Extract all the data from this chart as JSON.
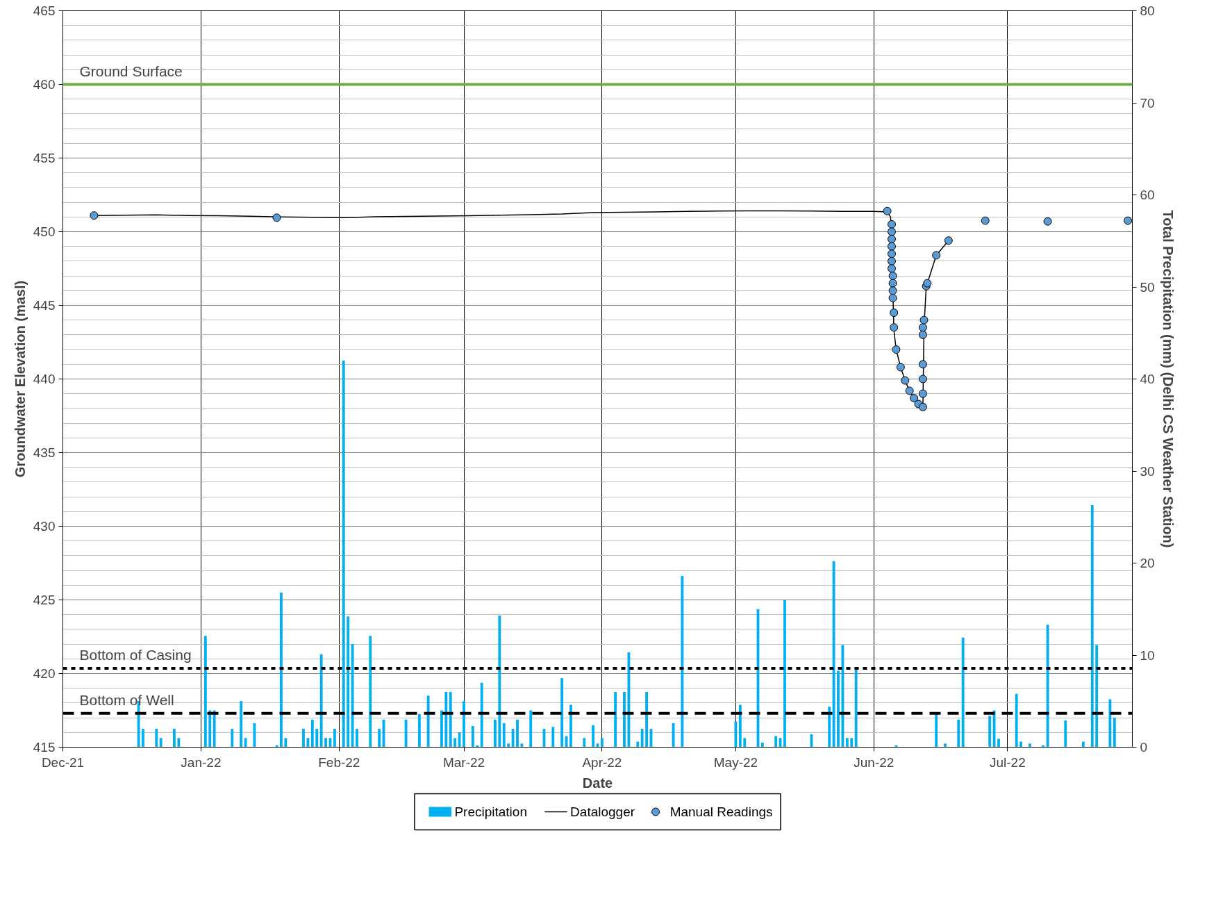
{
  "chart_data": {
    "type": "line",
    "xlabel": "Date",
    "ylabel": "Groundwater Elevation (masl)",
    "y2label": "Total Precipitation (mm) (Delhi CS Weather Station)",
    "xlim": [
      "2021-12-01",
      "2022-07-29"
    ],
    "xticks": [
      {
        "value": "2021-12-01",
        "label": "Dec-21"
      },
      {
        "value": "2022-01-01",
        "label": "Jan-22"
      },
      {
        "value": "2022-02-01",
        "label": "Feb-22"
      },
      {
        "value": "2022-03-01",
        "label": "Mar-22"
      },
      {
        "value": "2022-04-01",
        "label": "Apr-22"
      },
      {
        "value": "2022-05-01",
        "label": "May-22"
      },
      {
        "value": "2022-06-01",
        "label": "Jun-22"
      },
      {
        "value": "2022-07-01",
        "label": "Jul-22"
      }
    ],
    "ylim": [
      415,
      465
    ],
    "yticks": [
      415,
      420,
      425,
      430,
      435,
      440,
      445,
      450,
      455,
      460,
      465
    ],
    "y2lim": [
      0,
      80
    ],
    "y2ticks": [
      0,
      10,
      20,
      30,
      40,
      50,
      60,
      70,
      80
    ],
    "grid": true,
    "legend": "bottom",
    "series": [
      {
        "name": "Precipitation",
        "type": "bar",
        "axis": "y2",
        "color": "#00b0f0",
        "x": [
          "2021-12-18",
          "2021-12-19",
          "2021-12-22",
          "2021-12-23",
          "2021-12-26",
          "2021-12-27",
          "2022-01-02",
          "2022-01-03",
          "2022-01-04",
          "2022-01-08",
          "2022-01-10",
          "2022-01-11",
          "2022-01-13",
          "2022-01-18",
          "2022-01-19",
          "2022-01-20",
          "2022-01-24",
          "2022-01-25",
          "2022-01-26",
          "2022-01-27",
          "2022-01-28",
          "2022-01-29",
          "2022-01-30",
          "2022-01-31",
          "2022-02-02",
          "2022-02-03",
          "2022-02-04",
          "2022-02-05",
          "2022-02-08",
          "2022-02-10",
          "2022-02-11",
          "2022-02-16",
          "2022-02-19",
          "2022-02-21",
          "2022-02-24",
          "2022-02-25",
          "2022-02-26",
          "2022-02-27",
          "2022-02-28",
          "2022-03-01",
          "2022-03-03",
          "2022-03-04",
          "2022-03-05",
          "2022-03-08",
          "2022-03-09",
          "2022-03-10",
          "2022-03-11",
          "2022-03-12",
          "2022-03-13",
          "2022-03-14",
          "2022-03-16",
          "2022-03-19",
          "2022-03-21",
          "2022-03-23",
          "2022-03-24",
          "2022-03-25",
          "2022-03-28",
          "2022-03-30",
          "2022-03-31",
          "2022-04-01",
          "2022-04-04",
          "2022-04-06",
          "2022-04-07",
          "2022-04-09",
          "2022-04-10",
          "2022-04-11",
          "2022-04-12",
          "2022-04-17",
          "2022-04-19",
          "2022-05-01",
          "2022-05-02",
          "2022-05-03",
          "2022-05-06",
          "2022-05-07",
          "2022-05-10",
          "2022-05-11",
          "2022-05-12",
          "2022-05-18",
          "2022-05-22",
          "2022-05-23",
          "2022-05-24",
          "2022-05-25",
          "2022-05-26",
          "2022-05-27",
          "2022-05-28",
          "2022-06-06",
          "2022-06-15",
          "2022-06-17",
          "2022-06-20",
          "2022-06-21",
          "2022-06-27",
          "2022-06-28",
          "2022-06-29",
          "2022-07-03",
          "2022-07-04",
          "2022-07-06",
          "2022-07-09",
          "2022-07-10",
          "2022-07-14",
          "2022-07-18",
          "2022-07-20",
          "2022-07-21",
          "2022-07-24",
          "2022-07-25"
        ],
        "values": [
          5.0,
          2.0,
          2.0,
          1.0,
          2.0,
          1.0,
          12.1,
          4.0,
          4.0,
          2.0,
          5.0,
          1.0,
          2.6,
          0.2,
          16.8,
          1.0,
          2.0,
          1.0,
          3.0,
          2.0,
          10.1,
          1.0,
          1.0,
          2.0,
          42.0,
          14.2,
          11.2,
          2.0,
          12.1,
          2.0,
          3.0,
          3.0,
          3.6,
          5.6,
          4.0,
          6.0,
          6.0,
          1.0,
          1.6,
          5.0,
          2.3,
          0.2,
          7.0,
          3.0,
          14.3,
          2.6,
          0.4,
          2.0,
          3.0,
          0.4,
          4.0,
          2.0,
          2.2,
          7.5,
          1.2,
          4.6,
          1.0,
          2.4,
          0.4,
          1.0,
          6.0,
          6.0,
          10.3,
          0.6,
          2.0,
          6.0,
          2.0,
          2.6,
          18.6,
          2.8,
          4.6,
          1.0,
          15.0,
          0.5,
          1.2,
          1.0,
          16.0,
          1.4,
          4.4,
          20.2,
          8.3,
          11.1,
          1.0,
          1.0,
          8.7,
          0.2,
          3.6,
          0.4,
          3.0,
          11.9,
          3.4,
          4.0,
          0.9,
          5.8,
          0.6,
          0.4,
          0.2,
          13.3,
          2.9,
          0.6,
          26.3,
          11.1,
          5.2,
          3.2
        ]
      },
      {
        "name": "Datalogger",
        "color": "#000000",
        "x": [
          "2021-12-08",
          "2021-12-15",
          "2021-12-22",
          "2021-12-29",
          "2022-01-05",
          "2022-01-12",
          "2022-01-19",
          "2022-01-26",
          "2022-02-02",
          "2022-02-09",
          "2022-02-16",
          "2022-02-23",
          "2022-03-02",
          "2022-03-09",
          "2022-03-16",
          "2022-03-23",
          "2022-03-30",
          "2022-04-06",
          "2022-04-13",
          "2022-04-20",
          "2022-04-27",
          "2022-05-04",
          "2022-05-11",
          "2022-05-18",
          "2022-05-25",
          "2022-06-01",
          "2022-06-04",
          "2022-06-04T18:00",
          "2022-06-05",
          "2022-06-05T06:00",
          "2022-06-05T12:00",
          "2022-06-06",
          "2022-06-07",
          "2022-06-08",
          "2022-06-09",
          "2022-06-10",
          "2022-06-11",
          "2022-06-12",
          "2022-06-12T06:00",
          "2022-06-12T18:00",
          "2022-06-13",
          "2022-06-15",
          "2022-06-17T18:00"
        ],
        "values": [
          451.1,
          451.12,
          451.14,
          451.1,
          451.08,
          451.05,
          451.0,
          450.98,
          450.95,
          451.02,
          451.04,
          451.06,
          451.08,
          451.12,
          451.15,
          451.2,
          451.3,
          451.32,
          451.35,
          451.38,
          451.4,
          451.42,
          451.42,
          451.4,
          451.38,
          451.38,
          451.35,
          451.0,
          449.0,
          446.0,
          443.3,
          442.0,
          440.8,
          439.9,
          439.2,
          438.7,
          438.3,
          438.1,
          443.5,
          446.3,
          446.5,
          448.4,
          449.4
        ]
      },
      {
        "name": "Manual Readings",
        "type": "scatter",
        "marker": "circle",
        "color": "#5b9bd5",
        "x": [
          "2021-12-08",
          "2022-01-18",
          "2022-06-04",
          "2022-06-05",
          "2022-06-05",
          "2022-06-05",
          "2022-06-05",
          "2022-06-05",
          "2022-06-05",
          "2022-06-05",
          "2022-06-05T06:00",
          "2022-06-05T06:00",
          "2022-06-05T06:00",
          "2022-06-05T06:00",
          "2022-06-05T12:00",
          "2022-06-05T12:00",
          "2022-06-06",
          "2022-06-07",
          "2022-06-08",
          "2022-06-09",
          "2022-06-10",
          "2022-06-11",
          "2022-06-12",
          "2022-06-12",
          "2022-06-12",
          "2022-06-12",
          "2022-06-12",
          "2022-06-12",
          "2022-06-12T06:00",
          "2022-06-12T18:00",
          "2022-06-13",
          "2022-06-15",
          "2022-06-17T18:00",
          "2022-06-26",
          "2022-07-10",
          "2022-07-28"
        ],
        "values": [
          451.1,
          450.95,
          451.4,
          450.5,
          450.0,
          449.5,
          449.0,
          448.5,
          448.0,
          447.5,
          447.0,
          446.5,
          446.0,
          445.5,
          444.5,
          443.5,
          442.0,
          440.8,
          439.9,
          439.2,
          438.7,
          438.3,
          438.1,
          439.0,
          440.0,
          441.0,
          443.5,
          443.0,
          444.0,
          446.3,
          446.5,
          448.4,
          449.4,
          450.75,
          450.7,
          450.75
        ]
      }
    ],
    "ref_lines": [
      {
        "axis": "y",
        "value": 460,
        "label": "Ground Surface",
        "color": "#70ad47",
        "line_style": "solid"
      },
      {
        "axis": "y",
        "value": 420.35,
        "label": "Bottom of Casing",
        "color": "#000000",
        "line_style": "dotted"
      },
      {
        "axis": "y",
        "value": 417.3,
        "label": "Bottom of Well",
        "color": "#000000",
        "line_style": "dashed"
      }
    ]
  }
}
